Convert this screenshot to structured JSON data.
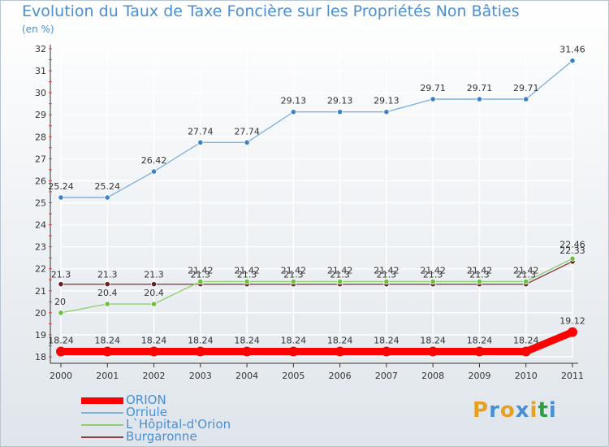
{
  "header": {
    "title": "Evolution du Taux de Taxe Foncière sur les Propriétés Non Bâties",
    "unit": "(en %)"
  },
  "logo": {
    "text": "Proxiti",
    "colors": [
      "#e8a020",
      "#4a8fd4",
      "#e8a020",
      "#4a8fd4",
      "#e8a020",
      "#2aa040",
      "#4a8fd4"
    ]
  },
  "chart_data": {
    "type": "line",
    "title": "Evolution du Taux de Taxe Foncière sur les Propriétés Non Bâties",
    "ylabel": "(en %)",
    "xlabel": "",
    "categories": [
      "2000",
      "2001",
      "2002",
      "2003",
      "2004",
      "2005",
      "2006",
      "2007",
      "2008",
      "2009",
      "2010",
      "2011"
    ],
    "ylim": [
      18,
      32
    ],
    "yticks": [
      18,
      19,
      20,
      21,
      22,
      23,
      24,
      25,
      26,
      27,
      28,
      29,
      30,
      31,
      32
    ],
    "grid": true,
    "legend_position": "bottom-left",
    "series": [
      {
        "name": "ORION",
        "color": "#ff0000",
        "point_color": "#ff0000",
        "values": [
          18.24,
          18.24,
          18.24,
          18.24,
          18.24,
          18.24,
          18.24,
          18.24,
          18.24,
          18.24,
          18.24,
          19.12
        ],
        "labels": [
          "18.24",
          "18.24",
          "18.24",
          "18.24",
          "18.24",
          "18.24",
          "18.24",
          "18.24",
          "18.24",
          "18.24",
          "18.24",
          "19.12"
        ]
      },
      {
        "name": "Orriule",
        "color": "#7fb2e0",
        "point_color": "#3c82c8",
        "values": [
          25.24,
          25.24,
          26.42,
          27.74,
          27.74,
          29.13,
          29.13,
          29.13,
          29.71,
          29.71,
          29.71,
          31.46
        ],
        "labels": [
          "25.24",
          "25.24",
          "26.42",
          "27.74",
          "27.74",
          "29.13",
          "29.13",
          "29.13",
          "29.71",
          "29.71",
          "29.71",
          "31.46"
        ]
      },
      {
        "name": "L`Hôpital-d'Orion",
        "color": "#90d070",
        "point_color": "#6cc040",
        "values": [
          20,
          20.4,
          20.4,
          21.42,
          21.42,
          21.42,
          21.42,
          21.42,
          21.42,
          21.42,
          21.42,
          22.46
        ],
        "labels": [
          "20",
          "20.4",
          "20.4",
          "21.42",
          "21.42",
          "21.42",
          "21.42",
          "21.42",
          "21.42",
          "21.42",
          "21.42",
          "22.46"
        ]
      },
      {
        "name": "Burgaronne",
        "color": "#8b4040",
        "point_color": "#6b2020",
        "values": [
          21.3,
          21.3,
          21.3,
          21.3,
          21.3,
          21.3,
          21.3,
          21.3,
          21.3,
          21.3,
          21.3,
          22.33
        ],
        "labels": [
          "21.3",
          "21.3",
          "21.3",
          "21.3",
          "21.3",
          "21.3",
          "21.3",
          "21.3",
          "21.3",
          "21.3",
          "21.3",
          "22.33"
        ]
      }
    ]
  }
}
